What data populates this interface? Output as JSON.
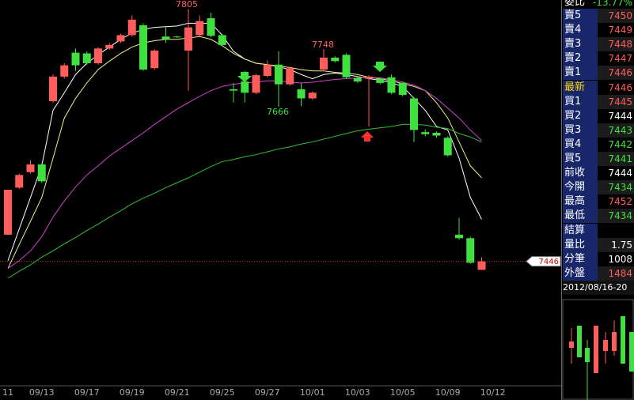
{
  "chart_data": {
    "type": "candlestick",
    "categories": [
      "11",
      null,
      null,
      "09/13",
      null,
      null,
      null,
      "09/17",
      null,
      null,
      null,
      "09/19",
      null,
      null,
      null,
      "09/21",
      null,
      null,
      null,
      "09/25",
      null,
      null,
      null,
      "09/27",
      null,
      null,
      null,
      "10/01",
      null,
      null,
      null,
      "10/03",
      null,
      null,
      null,
      "10/05",
      null,
      null,
      null,
      "10/09",
      null,
      null,
      null,
      "10/12"
    ],
    "open": [
      7484,
      7551,
      7573,
      7584,
      7674,
      7709,
      7743,
      7742,
      7728,
      7749,
      7759,
      7768,
      7782,
      7721,
      7766,
      7766,
      7746,
      7768,
      7792,
      7768,
      7691,
      7702,
      7686,
      7710,
      7726,
      7698,
      7691,
      7678,
      7719,
      7736,
      7740,
      7707,
      7706,
      7706,
      7708,
      7700,
      7678,
      7630,
      7629,
      7622,
      7484,
      7479,
      7434,
      null
    ],
    "high": [
      7548,
      7571,
      7590,
      7586,
      7712,
      7728,
      7749,
      7745,
      7751,
      7757,
      7770,
      7796,
      7785,
      7748,
      7779,
      7767,
      7805,
      7796,
      7800,
      7770,
      7700,
      7717,
      7713,
      7732,
      7745,
      7723,
      7700,
      7688,
      7748,
      7738,
      7742,
      7709,
      7711,
      7708,
      7712,
      7702,
      7680,
      7634,
      7631,
      7624,
      7508,
      7481,
      7452,
      null
    ],
    "low": [
      7484,
      7549,
      7571,
      7558,
      7672,
      7706,
      7717,
      7726,
      7726,
      7747,
      7757,
      7766,
      7717,
      7719,
      7757,
      7764,
      7689,
      7766,
      7765,
      7752,
      7672,
      7672,
      7684,
      7708,
      7666,
      7696,
      7667,
      7676,
      7717,
      7729,
      7706,
      7700,
      7638,
      7698,
      7684,
      7681,
      7616,
      7624,
      7622,
      7595,
      7477,
      7443,
      7434,
      null
    ],
    "close": [
      7548,
      7569,
      7584,
      7560,
      7709,
      7725,
      7725,
      7728,
      7749,
      7754,
      7768,
      7790,
      7719,
      7746,
      7762,
      7765,
      7779,
      7788,
      7767,
      7754,
      7689,
      7686,
      7711,
      7726,
      7698,
      7721,
      7678,
      7686,
      7736,
      7731,
      7708,
      7702,
      7709,
      7700,
      7686,
      7683,
      7633,
      7627,
      7625,
      7597,
      7479,
      7444,
      7446,
      null
    ],
    "up_color": "#ff5c5c",
    "down_color": "#3fe03f",
    "series": [
      {
        "color": "#ffffff",
        "values": [
          7447,
          7492,
          7537,
          7582,
          7661,
          7686,
          7712,
          7728,
          7740,
          7751,
          7762,
          7771,
          7776,
          7779,
          7780,
          7781,
          7785,
          7785,
          7785,
          7768,
          7745,
          7734,
          7728,
          7726,
          7723,
          7719,
          7712,
          7706,
          7712,
          7714,
          7712,
          7709,
          7706,
          7704,
          7700,
          7695,
          7678,
          7661,
          7638,
          7633,
          7593,
          7537,
          7506,
          null
        ]
      },
      {
        "color": "#f0f080",
        "values": [
          7436,
          7470,
          7503,
          7537,
          7593,
          7650,
          7678,
          7700,
          7719,
          7731,
          7742,
          7751,
          7757,
          7760,
          7762,
          7762,
          7764,
          7766,
          7762,
          7753,
          7742,
          7734,
          7728,
          7726,
          7724,
          7722,
          7719,
          7717,
          7717,
          7715,
          7714,
          7712,
          7708,
          7706,
          7703,
          7699,
          7695,
          7689,
          7672,
          7650,
          7616,
          7582,
          7565,
          null
        ]
      },
      {
        "color": "#d040d0",
        "values": [
          7436,
          7447,
          7461,
          7481,
          7509,
          7532,
          7552,
          7569,
          7582,
          7596,
          7607,
          7618,
          7629,
          7641,
          7652,
          7663,
          7672,
          7681,
          7689,
          7695,
          7698,
          7700,
          7701,
          7703,
          7703,
          7701,
          7700,
          7701,
          7703,
          7705,
          7706,
          7707,
          7708,
          7707,
          7705,
          7701,
          7697,
          7689,
          7678,
          7664,
          7650,
          7633,
          7618,
          null
        ]
      },
      {
        "color": "#30c030",
        "values": [
          7422,
          7432,
          7441,
          7452,
          7461,
          7471,
          7480,
          7490,
          7499,
          7509,
          7518,
          7528,
          7536,
          7543,
          7551,
          7558,
          7565,
          7573,
          7581,
          7588,
          7591,
          7595,
          7598,
          7602,
          7606,
          7609,
          7613,
          7616,
          7620,
          7624,
          7628,
          7632,
          7634,
          7636,
          7638,
          7641,
          7641,
          7640,
          7637,
          7635,
          7628,
          7623,
          7616,
          null
        ]
      }
    ],
    "ylim": [
      7269,
      7818
    ],
    "annotations": [
      "7805",
      "7748",
      "7666"
    ],
    "last_price": 7446
  },
  "quote_panel": {
    "title": {
      "label": "委比",
      "value": "-13.77%"
    },
    "rows": [
      {
        "label": "賣5",
        "value": "7450",
        "color": "#ff5c5c"
      },
      {
        "label": "賣4",
        "value": "7449",
        "color": "#ff5c5c"
      },
      {
        "label": "賣3",
        "value": "7448",
        "color": "#ff5c5c"
      },
      {
        "label": "賣2",
        "value": "7447",
        "color": "#ff5c5c"
      },
      {
        "label": "賣1",
        "value": "7446",
        "color": "#ff5c5c"
      },
      {
        "label": "最新",
        "value": "7446",
        "color": "#ff5c5c"
      },
      {
        "label": "買1",
        "value": "7445",
        "color": "#ff5c5c"
      },
      {
        "label": "買2",
        "value": "7444",
        "color": "#ffffff"
      },
      {
        "label": "買3",
        "value": "7443",
        "color": "#3fe03f"
      },
      {
        "label": "買4",
        "value": "7442",
        "color": "#3fe03f"
      },
      {
        "label": "買5",
        "value": "7441",
        "color": "#3fe03f"
      },
      {
        "label": "前收",
        "value": "7444",
        "color": "#ffffff"
      },
      {
        "label": "今開",
        "value": "7434",
        "color": "#3fe03f"
      },
      {
        "label": "最高",
        "value": "7452",
        "color": "#ff5c5c"
      },
      {
        "label": "最低",
        "value": "7434",
        "color": "#3fe03f"
      },
      {
        "label": "結算",
        "value": null,
        "color": "#ffffff"
      },
      {
        "label": "量比",
        "value": "1.75",
        "color": "#ffffff"
      },
      {
        "label": "分筆",
        "value": "1008",
        "color": "#ffffff"
      },
      {
        "label": "外盤",
        "value": "1484",
        "color": "#ff5c5c"
      }
    ],
    "date_range": "2012/08/16-20"
  }
}
